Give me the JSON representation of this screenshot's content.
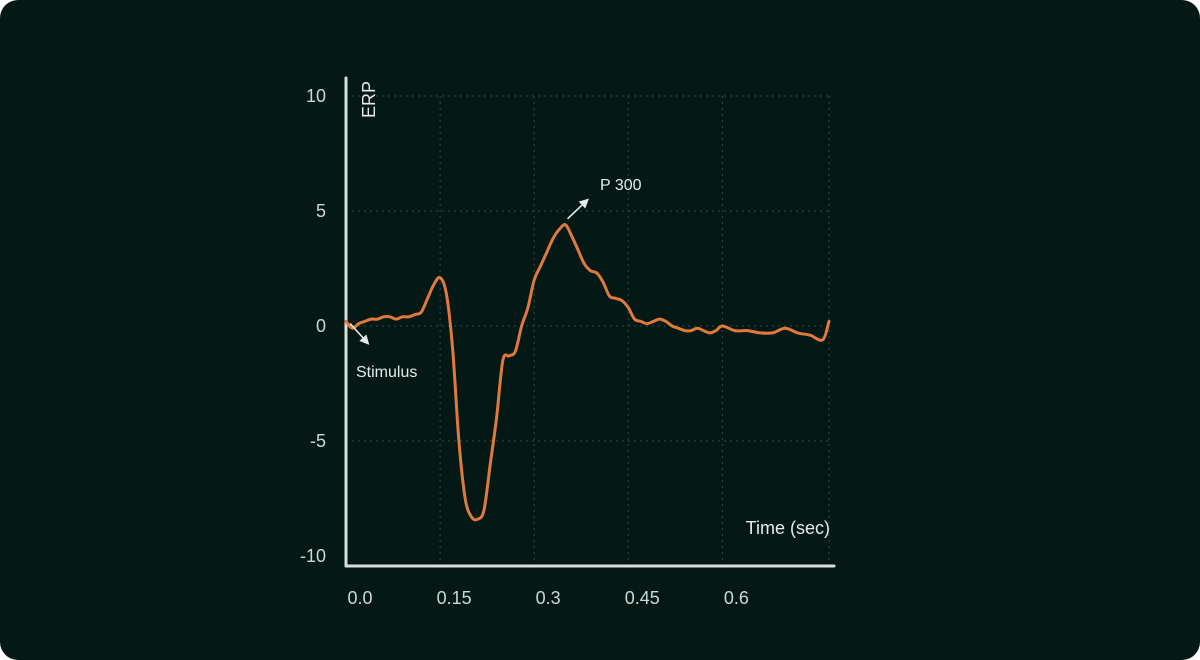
{
  "chart_data": {
    "type": "line",
    "title": "",
    "xlabel": "Time (sec)",
    "ylabel": "ERP",
    "xlim": [
      0,
      0.77
    ],
    "ylim": [
      -10,
      10
    ],
    "xticks": [
      0,
      0.15,
      0.3,
      0.45,
      0.6
    ],
    "xtick_labels": [
      "0.0",
      "0.15",
      "0.3",
      "0.45",
      "0.6"
    ],
    "yticks": [
      10,
      5,
      0,
      -5,
      -10
    ],
    "ytick_labels": [
      "10",
      "5",
      "0",
      "-5",
      "-10"
    ],
    "grid": true,
    "colors": {
      "background": "#041915",
      "line": "#e07a3c",
      "axis": "#d9dedc",
      "grid": "#2f4a44",
      "text": "#cfd6d3"
    },
    "series": [
      {
        "values_x": [
          0.0,
          0.01,
          0.02,
          0.03,
          0.04,
          0.05,
          0.06,
          0.07,
          0.08,
          0.09,
          0.1,
          0.11,
          0.12,
          0.13,
          0.14,
          0.15,
          0.16,
          0.17,
          0.18,
          0.19,
          0.2,
          0.21,
          0.22,
          0.23,
          0.24,
          0.25,
          0.26,
          0.27,
          0.28,
          0.29,
          0.3,
          0.31,
          0.32,
          0.33,
          0.34,
          0.35,
          0.36,
          0.37,
          0.38,
          0.39,
          0.4,
          0.41,
          0.42,
          0.43,
          0.44,
          0.45,
          0.46,
          0.47,
          0.48,
          0.49,
          0.5,
          0.51,
          0.52,
          0.53,
          0.54,
          0.55,
          0.56,
          0.57,
          0.58,
          0.59,
          0.6,
          0.62,
          0.64,
          0.66,
          0.68,
          0.7,
          0.72,
          0.74,
          0.76,
          0.77
        ],
        "values_y": [
          0.2,
          -0.1,
          0.1,
          0.2,
          0.3,
          0.3,
          0.4,
          0.4,
          0.3,
          0.4,
          0.4,
          0.5,
          0.6,
          1.2,
          1.8,
          2.1,
          1.4,
          -1.0,
          -5.0,
          -7.5,
          -8.3,
          -8.4,
          -8.0,
          -6.0,
          -4.0,
          -1.5,
          -1.3,
          -1.1,
          0.0,
          0.8,
          2.0,
          2.6,
          3.2,
          3.8,
          4.2,
          4.4,
          3.9,
          3.3,
          2.7,
          2.4,
          2.3,
          1.9,
          1.3,
          1.2,
          1.1,
          0.8,
          0.3,
          0.2,
          0.1,
          0.2,
          0.3,
          0.2,
          0.0,
          -0.1,
          -0.2,
          -0.2,
          -0.1,
          -0.2,
          -0.3,
          -0.2,
          0.0,
          -0.2,
          -0.2,
          -0.3,
          -0.3,
          -0.1,
          -0.3,
          -0.4,
          -0.6,
          0.2
        ]
      }
    ],
    "annotations": [
      {
        "label": "Stimulus",
        "point": [
          0.0,
          0.2
        ]
      },
      {
        "label": "P 300",
        "point": [
          0.35,
          4.4
        ]
      }
    ]
  }
}
